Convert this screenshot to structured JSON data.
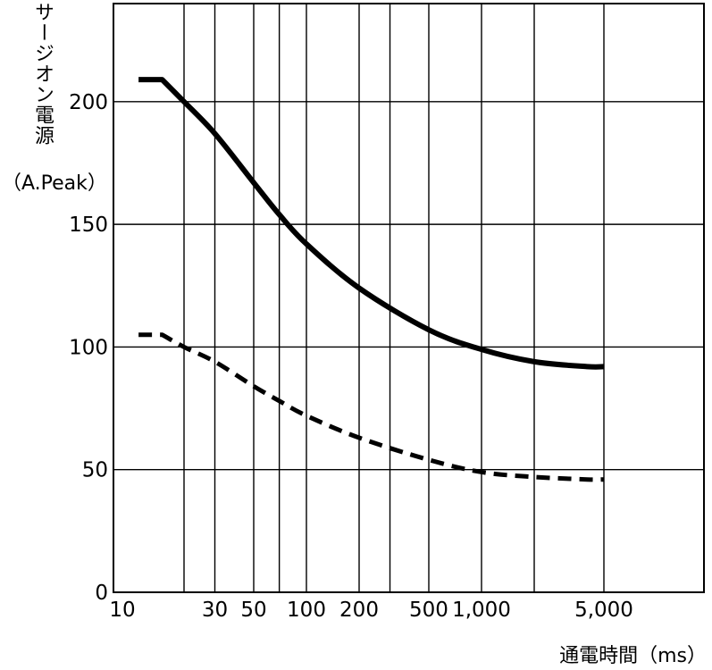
{
  "chart_data": {
    "type": "line",
    "ylabel_line1": "サージオン電源",
    "ylabel_line2": "（A.Peak）",
    "xlabel": "通電時間（ms）",
    "x_scale": "log",
    "xlim": [
      10,
      10000
    ],
    "ylim": [
      0,
      240
    ],
    "grid": true,
    "x_ticks": [
      {
        "value": 10,
        "label": "10"
      },
      {
        "value": 30,
        "label": "30"
      },
      {
        "value": 50,
        "label": "50"
      },
      {
        "value": 100,
        "label": "100"
      },
      {
        "value": 200,
        "label": "200"
      },
      {
        "value": 500,
        "label": "500"
      },
      {
        "value": 1000,
        "label": "1,000"
      },
      {
        "value": 5000,
        "label": "5,000"
      }
    ],
    "x_gridlines": [
      20,
      30,
      50,
      70,
      100,
      200,
      300,
      500,
      1000,
      2000,
      5000
    ],
    "y_ticks": [
      {
        "value": 0,
        "label": "0"
      },
      {
        "value": 50,
        "label": "50"
      },
      {
        "value": 100,
        "label": "100"
      },
      {
        "value": 150,
        "label": "150"
      },
      {
        "value": 200,
        "label": "200"
      }
    ],
    "series": [
      {
        "style": "solid",
        "x": [
          11,
          15,
          20,
          30,
          50,
          70,
          100,
          200,
          500,
          1000,
          2000,
          4000,
          5000
        ],
        "y": [
          209,
          209,
          200,
          187,
          167,
          154,
          142,
          124,
          107,
          99,
          94,
          92,
          92
        ]
      },
      {
        "style": "dashed",
        "x": [
          11,
          15,
          20,
          30,
          50,
          70,
          100,
          200,
          500,
          1000,
          2000,
          4000,
          5000
        ],
        "y": [
          105,
          105,
          100,
          94,
          84,
          78,
          72,
          63,
          54,
          49,
          47,
          46,
          46
        ]
      }
    ]
  }
}
